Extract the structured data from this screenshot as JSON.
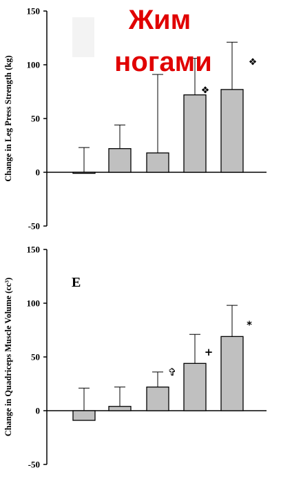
{
  "overlay": {
    "line1": "Жим",
    "line2": "ногами"
  },
  "chart_data": [
    {
      "type": "bar",
      "ylabel": "Change in Leg Press Strength (kg)",
      "ylim": [
        -50,
        150
      ],
      "yticks": [
        "150",
        "100",
        "50",
        "0",
        "-50"
      ],
      "values": [
        -1,
        22,
        18,
        72,
        77
      ],
      "error_upper": [
        23,
        44,
        91,
        106,
        121
      ],
      "markers": [
        "",
        "",
        "",
        "❖",
        "❖"
      ],
      "bar_color": "#c0c0c0"
    },
    {
      "type": "bar",
      "panel_label": "E",
      "ylabel": "Change in Quadriceps Muscle Volume (cc³)",
      "ylim": [
        -50,
        150
      ],
      "yticks": [
        "150",
        "100",
        "50",
        "0",
        "-50"
      ],
      "values": [
        -9,
        4,
        22,
        44,
        69
      ],
      "error_upper": [
        21,
        22,
        36,
        71,
        98
      ],
      "markers": [
        "",
        "",
        "✞",
        "+",
        "*"
      ],
      "bar_color": "#c0c0c0"
    }
  ]
}
